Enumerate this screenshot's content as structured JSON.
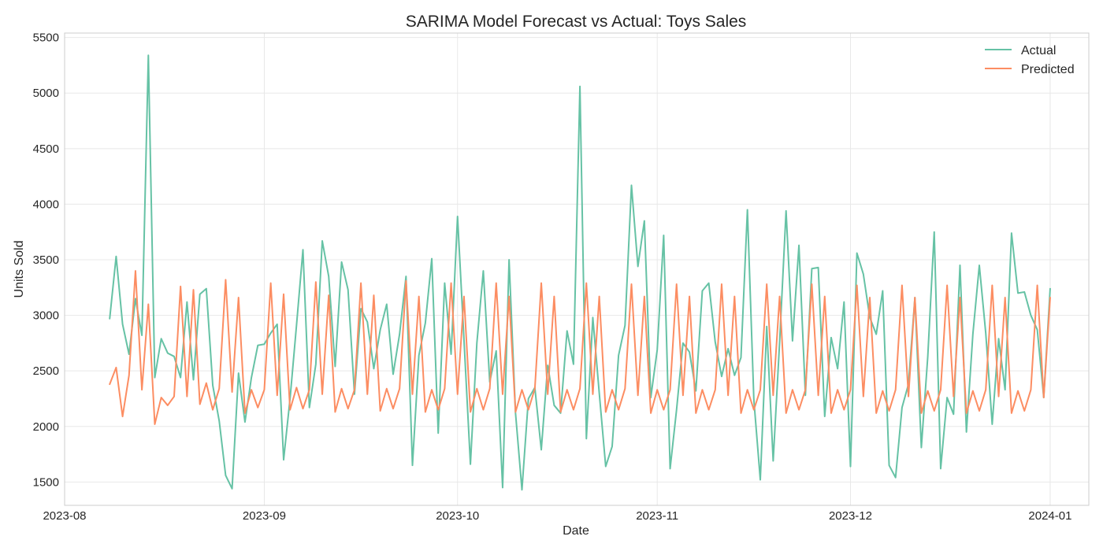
{
  "chart_data": {
    "type": "line",
    "title": "SARIMA Model Forecast vs Actual: Toys Sales",
    "xlabel": "Date",
    "ylabel": "Units Sold",
    "ylim": [
      1290,
      5540
    ],
    "xlim": [
      "2023-08-01",
      "2024-01-07"
    ],
    "x_ticks": [
      "2023-08",
      "2023-09",
      "2023-10",
      "2023-11",
      "2023-12",
      "2024-01"
    ],
    "y_ticks": [
      1500,
      2000,
      2500,
      3000,
      3500,
      4000,
      4500,
      5000,
      5500
    ],
    "grid": true,
    "legend_position": "top-right",
    "start_date": "2023-08-08",
    "series": [
      {
        "name": "Actual",
        "color": "#66c2a5",
        "values": [
          2970,
          3530,
          2920,
          2650,
          3150,
          2820,
          5340,
          2440,
          2790,
          2660,
          2630,
          2440,
          3120,
          2420,
          3190,
          3240,
          2370,
          2050,
          1560,
          1440,
          2480,
          2040,
          2440,
          2730,
          2740,
          2840,
          2920,
          1700,
          2250,
          2910,
          3590,
          2170,
          2560,
          3670,
          3350,
          2540,
          3480,
          3230,
          2290,
          3060,
          2940,
          2520,
          2870,
          3100,
          2470,
          2830,
          3350,
          1650,
          2640,
          2930,
          3510,
          1940,
          3290,
          2650,
          3890,
          2780,
          1660,
          2750,
          3400,
          2400,
          2680,
          1450,
          3500,
          2120,
          1430,
          2250,
          2350,
          1790,
          2550,
          2190,
          2120,
          2860,
          2560,
          5060,
          1890,
          2980,
          2300,
          1640,
          1820,
          2640,
          2910,
          4170,
          3440,
          3850,
          2260,
          2690,
          3720,
          1620,
          2150,
          2750,
          2670,
          2320,
          3220,
          3290,
          2760,
          2450,
          2700,
          2460,
          2620,
          3950,
          2240,
          1520,
          2900,
          1690,
          2760,
          3940,
          2770,
          3630,
          2280,
          3420,
          3430,
          2090,
          2800,
          2520,
          3120,
          1640,
          3560,
          3370,
          2980,
          2830,
          3220,
          1650,
          1540,
          2170,
          2380,
          3160,
          1810,
          2630,
          3750,
          1620,
          2260,
          2110,
          3450,
          1950,
          2830,
          3450,
          2840,
          2020,
          2790,
          2330,
          3740,
          3200,
          3210,
          3000,
          2870,
          2260,
          3240
        ]
      },
      {
        "name": "Predicted",
        "color": "#fc8d62",
        "values": [
          2380,
          2530,
          2090,
          2460,
          3400,
          2330,
          3100,
          2020,
          2260,
          2190,
          2270,
          3260,
          2270,
          3230,
          2200,
          2390,
          2150,
          2340,
          3320,
          2310,
          3160,
          2120,
          2330,
          2170,
          2330,
          3290,
          2280,
          3190,
          2150,
          2350,
          2160,
          2330,
          3300,
          2290,
          3180,
          2130,
          2340,
          2160,
          2330,
          3290,
          2290,
          3180,
          2140,
          2340,
          2160,
          2340,
          3310,
          2290,
          3170,
          2130,
          2330,
          2150,
          2340,
          3290,
          2290,
          3170,
          2130,
          2340,
          2150,
          2340,
          3290,
          2290,
          3170,
          2130,
          2330,
          2150,
          2340,
          3290,
          2290,
          3170,
          2130,
          2330,
          2150,
          2340,
          3290,
          2290,
          3170,
          2130,
          2330,
          2150,
          2340,
          3280,
          2280,
          3170,
          2120,
          2330,
          2150,
          2330,
          3280,
          2280,
          3170,
          2120,
          2330,
          2150,
          2330,
          3280,
          2280,
          3170,
          2120,
          2330,
          2150,
          2330,
          3280,
          2280,
          3170,
          2120,
          2330,
          2150,
          2330,
          3280,
          2280,
          3170,
          2120,
          2330,
          2150,
          2330,
          3270,
          2270,
          3160,
          2120,
          2320,
          2140,
          2330,
          3270,
          2270,
          3160,
          2120,
          2320,
          2140,
          2330,
          3270,
          2270,
          3160,
          2120,
          2320,
          2140,
          2330,
          3270,
          2270,
          3160,
          2120,
          2320,
          2140,
          2330,
          3270,
          2260,
          3160
        ]
      }
    ]
  }
}
